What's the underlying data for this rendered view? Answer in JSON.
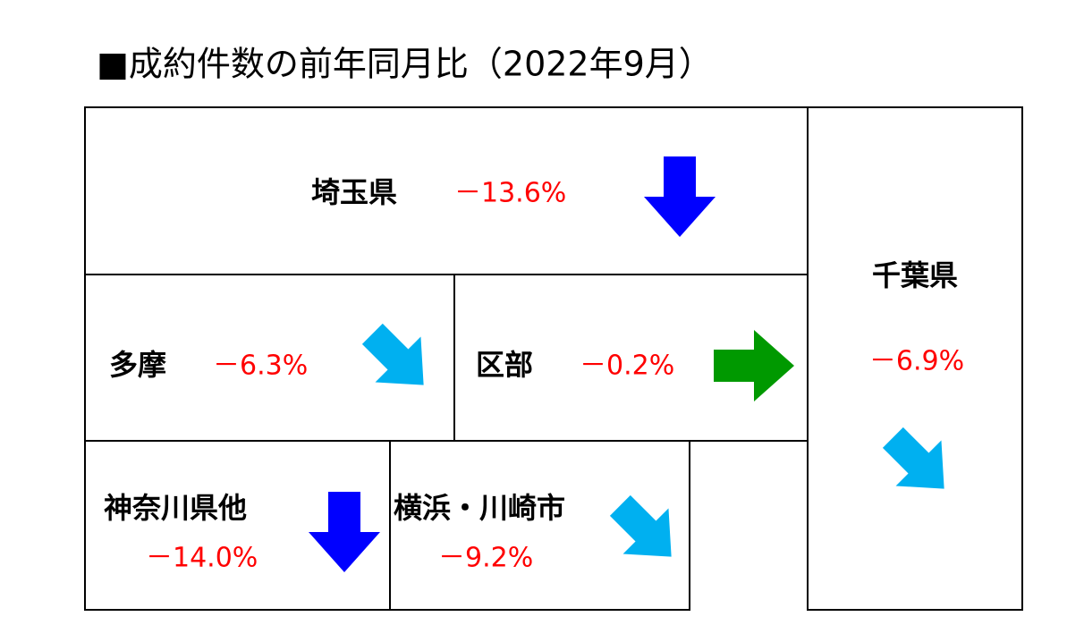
{
  "title": "■成約件数の前年同月比（2022年9月）",
  "regions": [
    {
      "name": "埼玉県",
      "change": "－13.6%"
    },
    {
      "name": "多摩",
      "change": "－6.3%"
    },
    {
      "name": "区部",
      "change": "－0.2%"
    },
    {
      "name": "千葉県",
      "change": "－6.9%"
    },
    {
      "name": "神奈川県他",
      "change": "－14.0%"
    },
    {
      "name": "横浜・川崎市",
      "change": "－9.2%"
    }
  ]
}
